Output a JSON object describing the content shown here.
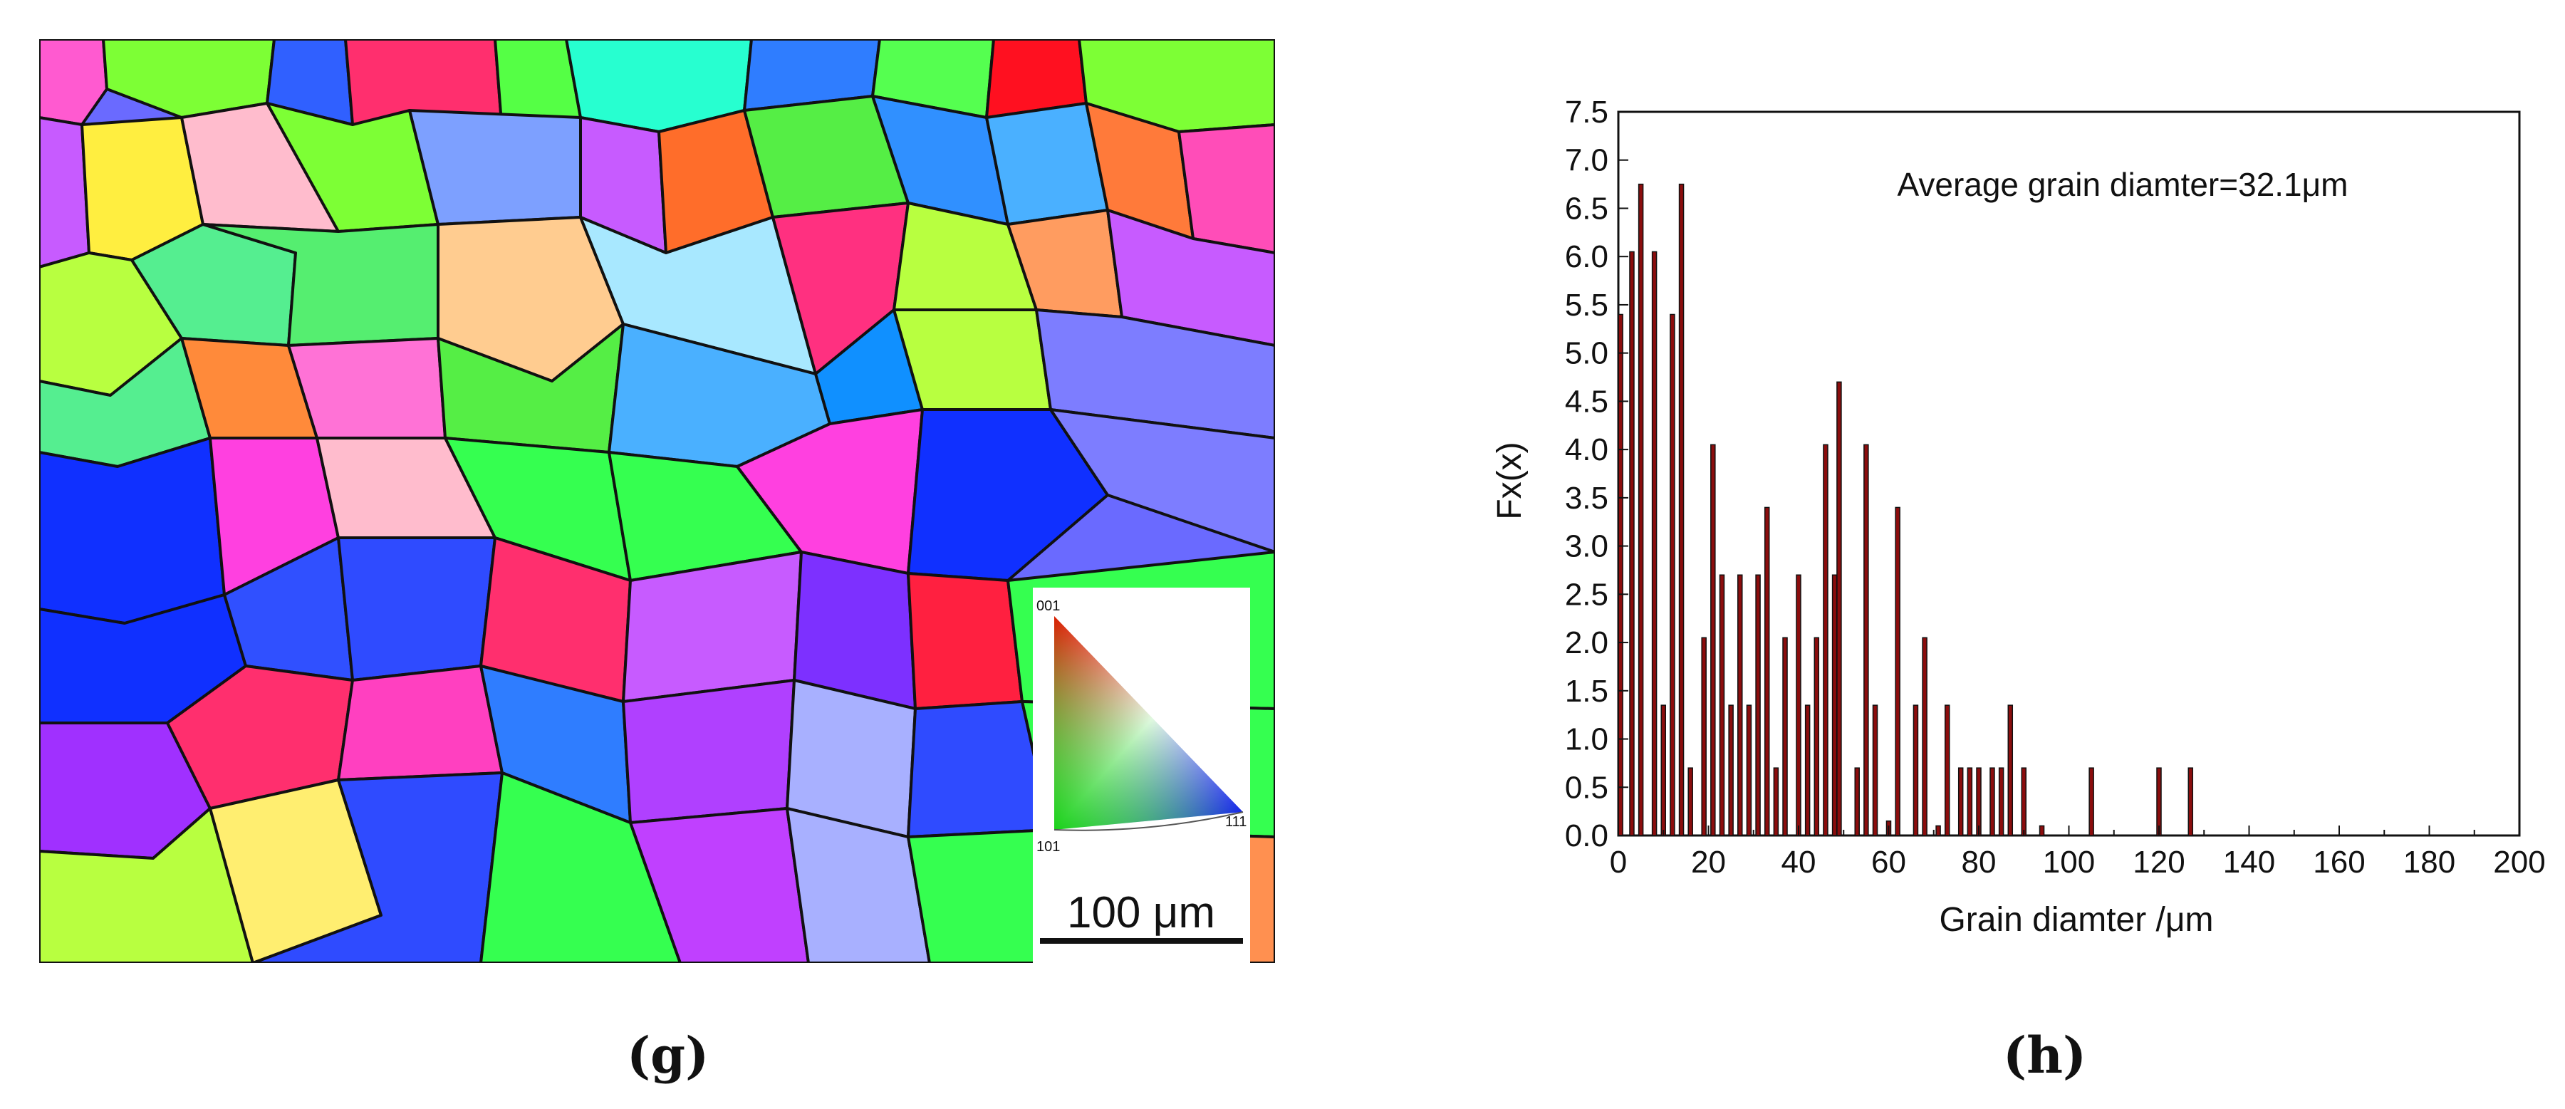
{
  "figure": {
    "left_panel": {
      "label": "(g)",
      "scale_bar_text": "100 μm",
      "ipf_key": {
        "top_label": "001",
        "bottom_label": "101",
        "right_label": "111"
      }
    },
    "right_panel": {
      "label": "(h)"
    }
  },
  "chart_data": {
    "type": "bar",
    "title": "",
    "annotation": "Average grain diamter=32.1μm",
    "xlabel": "Grain diamter /μm",
    "ylabel": "Fx(x)",
    "xlim": [
      0,
      200
    ],
    "ylim": [
      0,
      7.5
    ],
    "x_ticks": [
      0,
      20,
      40,
      60,
      80,
      100,
      120,
      140,
      160,
      180,
      200
    ],
    "y_ticks": [
      0.0,
      0.5,
      1.0,
      1.5,
      2.0,
      2.5,
      3.0,
      3.5,
      4.0,
      4.5,
      5.0,
      5.5,
      6.0,
      6.5,
      7.0,
      7.5
    ],
    "bar_color": "#8b0d0d",
    "x": [
      0.5,
      3,
      5,
      8,
      10,
      12,
      14,
      16,
      19,
      21,
      23,
      25,
      27,
      29,
      31,
      33,
      35,
      37,
      40,
      42,
      44,
      46,
      48,
      49,
      53,
      55,
      57,
      60,
      62,
      66,
      68,
      71,
      73,
      76,
      78,
      80,
      83,
      85,
      87,
      90,
      94,
      105,
      120,
      127
    ],
    "values": [
      5.4,
      6.05,
      6.75,
      6.05,
      1.35,
      5.4,
      6.75,
      0.7,
      2.05,
      4.05,
      2.7,
      1.35,
      2.7,
      1.35,
      2.7,
      3.4,
      0.7,
      2.05,
      2.7,
      1.35,
      2.05,
      4.05,
      2.7,
      4.7,
      0.7,
      4.05,
      1.35,
      0.15,
      3.4,
      1.35,
      2.05,
      0.1,
      1.35,
      0.7,
      0.7,
      0.7,
      0.7,
      0.7,
      1.35,
      0.7,
      0.1,
      0.7,
      0.7,
      0.7
    ]
  }
}
